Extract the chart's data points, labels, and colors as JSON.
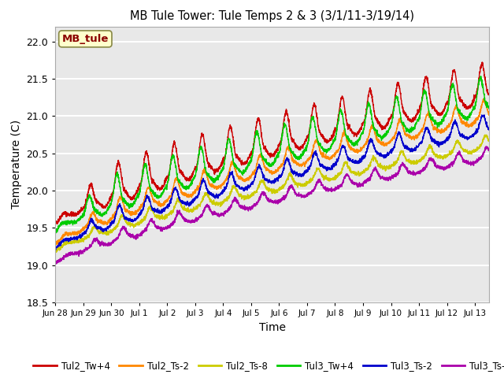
{
  "title": "MB Tule Tower: Tule Temps 2 & 3 (3/1/11-3/19/14)",
  "xlabel": "Time",
  "ylabel": "Temperature (C)",
  "ylim": [
    18.5,
    22.2
  ],
  "xlim_days": [
    0,
    15.5
  ],
  "x_tick_labels": [
    "Jun 28",
    "Jun 29",
    "Jun 30",
    "Jul 1",
    "Jul 2",
    "Jul 3",
    "Jul 4",
    "Jul 5",
    "Jul 6",
    "Jul 7",
    "Jul 8",
    "Jul 9",
    "Jul 10",
    "Jul 11",
    "Jul 12",
    "Jul 13"
  ],
  "x_tick_positions": [
    0,
    1,
    2,
    3,
    4,
    5,
    6,
    7,
    8,
    9,
    10,
    11,
    12,
    13,
    14,
    15
  ],
  "y_ticks": [
    18.5,
    19.0,
    19.5,
    20.0,
    20.5,
    21.0,
    21.5,
    22.0
  ],
  "series": {
    "Tul2_Tw+4": {
      "color": "#cc0000",
      "linewidth": 1.0
    },
    "Tul2_Ts-2": {
      "color": "#ff8800",
      "linewidth": 1.0
    },
    "Tul2_Ts-8": {
      "color": "#cccc00",
      "linewidth": 1.0
    },
    "Tul3_Tw+4": {
      "color": "#00cc00",
      "linewidth": 1.0
    },
    "Tul3_Ts-2": {
      "color": "#0000cc",
      "linewidth": 1.0
    },
    "Tul3_Ts-8": {
      "color": "#aa00aa",
      "linewidth": 1.0
    }
  },
  "legend_label": "MB_tule",
  "bg_color": "#e8e8e8",
  "grid_color": "white",
  "figsize": [
    6.4,
    4.8
  ],
  "dpi": 100
}
